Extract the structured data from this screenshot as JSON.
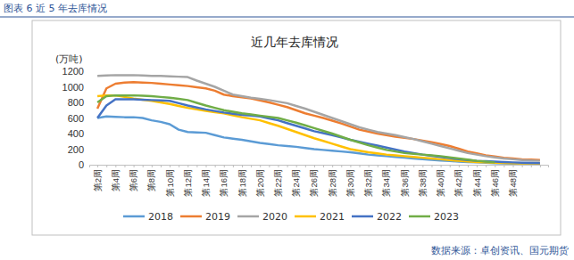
{
  "chart_data": {
    "type": "line",
    "caption": "图表 6 近 5 年去库情况",
    "title": "近几年去库情况",
    "y_label": "(万吨)",
    "source": "数据来源：卓创资讯、国元期货",
    "categories": [
      "第2周",
      null,
      "第4周",
      null,
      "第6周",
      null,
      "第8周",
      null,
      "第10周",
      null,
      "第12周",
      null,
      "第14周",
      null,
      "第16周",
      null,
      "第18周",
      null,
      "第20周",
      null,
      "第22周",
      null,
      "第24周",
      null,
      "第26周",
      null,
      "第28周",
      null,
      "第30周",
      null,
      "第32周",
      null,
      "第34周",
      null,
      "第36周",
      null,
      "第38周",
      null,
      "第40周",
      null,
      "第42周",
      null,
      "第44周",
      null,
      "第46周",
      null,
      "第48周",
      null,
      null,
      null
    ],
    "ylim": [
      0,
      1200
    ],
    "yticks": [
      0,
      200,
      400,
      600,
      800,
      1000,
      1200
    ],
    "grid": false,
    "legend": "bottom",
    "series": [
      {
        "name": "2018",
        "color": "#5B9BD5",
        "values": [
          600,
          620,
          615,
          610,
          610,
          600,
          570,
          550,
          520,
          450,
          420,
          415,
          410,
          380,
          350,
          335,
          320,
          300,
          280,
          265,
          250,
          240,
          230,
          215,
          200,
          190,
          180,
          170,
          160,
          145,
          130,
          120,
          110,
          100,
          90,
          80,
          70,
          62,
          55,
          48,
          40,
          35,
          30,
          25,
          20,
          18,
          15,
          12,
          10,
          10
        ]
      },
      {
        "name": "2019",
        "color": "#ED7D31",
        "values": [
          720,
          980,
          1040,
          1055,
          1060,
          1055,
          1050,
          1040,
          1030,
          1020,
          1010,
          995,
          980,
          950,
          900,
          880,
          865,
          850,
          825,
          800,
          770,
          740,
          700,
          660,
          630,
          600,
          565,
          530,
          490,
          450,
          425,
          400,
          380,
          360,
          345,
          330,
          310,
          290,
          265,
          240,
          205,
          170,
          145,
          120,
          105,
          90,
          80,
          70,
          65,
          60
        ]
      },
      {
        "name": "2020",
        "color": "#A5A5A5",
        "values": [
          1140,
          1145,
          1150,
          1150,
          1150,
          1145,
          1140,
          1140,
          1135,
          1130,
          1125,
          1080,
          1040,
          1000,
          950,
          900,
          880,
          860,
          845,
          830,
          810,
          790,
          755,
          720,
          680,
          640,
          600,
          560,
          520,
          480,
          450,
          420,
          400,
          380,
          355,
          330,
          300,
          270,
          240,
          210,
          180,
          150,
          130,
          110,
          95,
          80,
          70,
          60,
          55,
          50
        ]
      },
      {
        "name": "2021",
        "color": "#FFC000",
        "values": [
          880,
          890,
          890,
          870,
          850,
          835,
          820,
          800,
          780,
          755,
          730,
          710,
          690,
          675,
          660,
          635,
          610,
          590,
          570,
          535,
          500,
          460,
          420,
          380,
          340,
          305,
          270,
          235,
          200,
          180,
          160,
          145,
          130,
          120,
          110,
          100,
          90,
          80,
          70,
          60,
          50,
          42,
          35,
          30,
          25,
          22,
          20,
          18,
          16,
          15
        ]
      },
      {
        "name": "2022",
        "color": "#4472C4",
        "values": [
          600,
          760,
          840,
          840,
          840,
          835,
          830,
          825,
          820,
          790,
          760,
          735,
          710,
          690,
          670,
          655,
          640,
          630,
          620,
          595,
          570,
          535,
          500,
          465,
          430,
          405,
          380,
          350,
          320,
          295,
          270,
          245,
          220,
          195,
          170,
          150,
          130,
          115,
          100,
          85,
          70,
          60,
          50,
          45,
          40,
          35,
          30,
          25,
          22,
          20
        ]
      },
      {
        "name": "2023",
        "color": "#70AD47",
        "values": [
          800,
          880,
          890,
          890,
          890,
          885,
          880,
          870,
          860,
          845,
          830,
          795,
          760,
          730,
          700,
          680,
          660,
          645,
          630,
          615,
          600,
          570,
          540,
          505,
          470,
          435,
          400,
          360,
          320,
          285,
          250,
          220,
          190,
          170,
          150,
          140,
          130,
          120,
          110,
          95,
          80,
          65,
          50,
          40,
          30,
          null,
          null,
          null,
          null,
          null
        ]
      }
    ]
  }
}
